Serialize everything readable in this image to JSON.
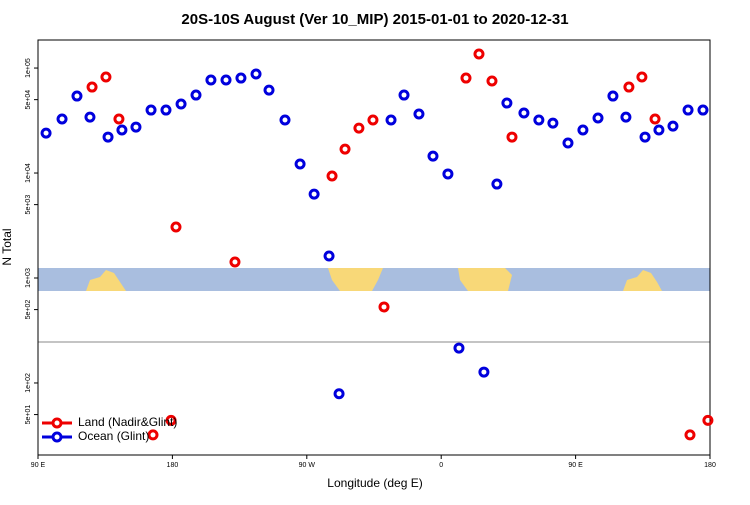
{
  "chart_data": {
    "type": "scatter",
    "title": "20S-10S August (Ver 10_MIP)   2015-01-01 to 2020-12-31",
    "x_label": "Longitude (deg E)",
    "y_label": "N Total",
    "log_y": true,
    "legend": "bottom-left",
    "xlim": [
      90,
      540
    ],
    "xticks": [
      {
        "value": 90,
        "label": "90 E"
      },
      {
        "value": 180,
        "label": "180"
      },
      {
        "value": 270,
        "label": "90 W"
      },
      {
        "value": 360,
        "label": "0"
      },
      {
        "value": 450,
        "label": "90 E"
      },
      {
        "value": 540,
        "label": "180"
      }
    ],
    "ylim": [
      20.6,
      185000
    ],
    "yticks": [
      {
        "value": 50,
        "label": "5e+01"
      },
      {
        "value": 100,
        "label": "1e+02"
      },
      {
        "value": 500,
        "label": "5e+02"
      },
      {
        "value": 1000,
        "label": "1e+03"
      },
      {
        "value": 5000,
        "label": "5e+03"
      },
      {
        "value": 10000,
        "label": "1e+04"
      },
      {
        "value": 50000,
        "label": "5e+04"
      },
      {
        "value": 100000,
        "label": "1e+05"
      }
    ],
    "series": [
      {
        "name": "Land (Nadir&Glint)",
        "color": "#ee0000",
        "x": [
          126.2,
          135.5,
          144.2,
          167.0,
          179.1,
          182.4,
          221.9,
          286.9,
          295.6,
          304.9,
          314.3,
          321.7,
          376.6,
          385.3,
          394.0,
          407.4,
          485.7,
          494.4,
          503.2,
          526.6,
          538.6
        ],
        "values": [
          65900,
          82100,
          32700,
          32,
          44,
          3060,
          1420,
          9360,
          16900,
          26800,
          32000,
          530,
          80300,
          136000,
          75200,
          22000,
          65900,
          82100,
          32700,
          32,
          44
        ]
      },
      {
        "name": "Ocean (Glint)",
        "color": "#0000dd",
        "x": [
          95.4,
          106.1,
          116.1,
          124.8,
          136.9,
          146.2,
          155.6,
          165.7,
          175.7,
          185.8,
          195.8,
          205.8,
          215.9,
          225.9,
          236.0,
          244.7,
          255.4,
          265.5,
          274.9,
          284.9,
          291.6,
          326.4,
          335.1,
          345.1,
          354.5,
          364.5,
          371.9,
          388.6,
          397.3,
          404.0,
          415.4,
          425.4,
          434.8,
          444.9,
          454.9,
          465.0,
          475.0,
          483.7,
          496.5,
          505.8,
          515.2,
          525.3,
          535.3
        ],
        "values": [
          24000,
          32700,
          54100,
          34100,
          22000,
          25700,
          27400,
          39800,
          39800,
          45400,
          55300,
          76900,
          76900,
          80300,
          87700,
          61600,
          32000,
          12200,
          6300,
          1620,
          79,
          32000,
          55300,
          36500,
          14500,
          9800,
          215,
          127,
          7850,
          46400,
          37300,
          32000,
          29900,
          19300,
          25700,
          33400,
          54100,
          34100,
          22000,
          25700,
          28000,
          39800,
          39800
        ]
      }
    ]
  }
}
